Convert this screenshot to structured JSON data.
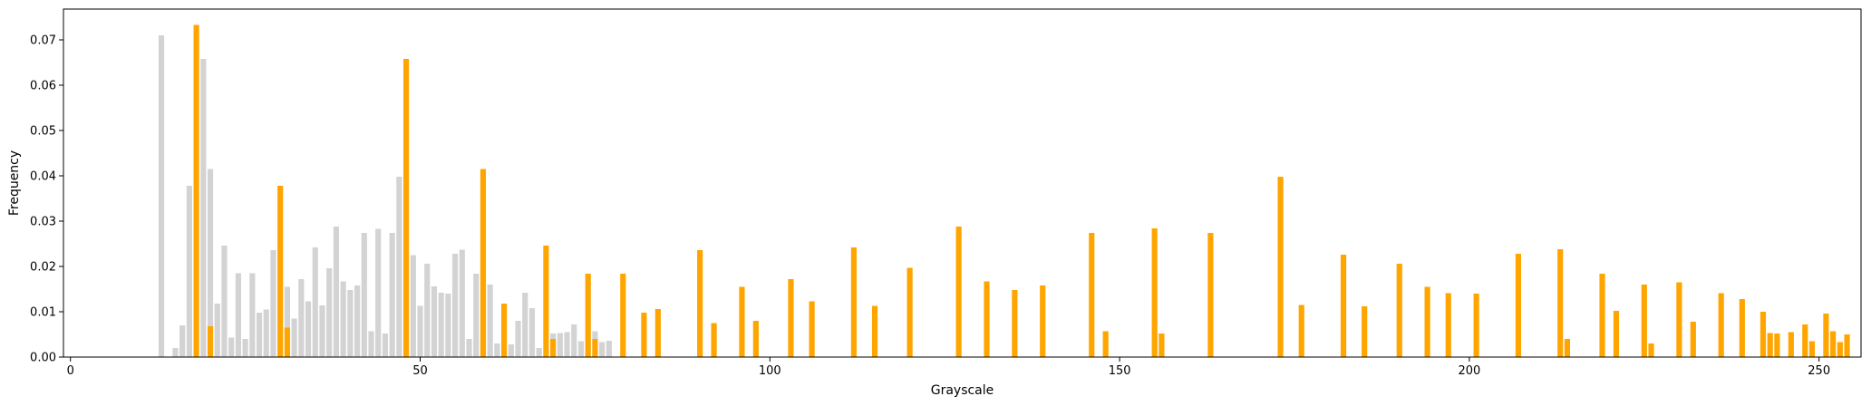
{
  "chart_data": {
    "type": "bar",
    "title": "",
    "xlabel": "Grayscale",
    "ylabel": "Frequency",
    "xlim": [
      -1,
      256
    ],
    "ylim": [
      0,
      0.0768
    ],
    "xticks": [
      0,
      50,
      100,
      150,
      200,
      250
    ],
    "yticks": [
      0.0,
      0.01,
      0.02,
      0.03,
      0.04,
      0.05,
      0.06,
      0.07
    ],
    "ytick_labels": [
      "0.00",
      "0.01",
      "0.02",
      "0.03",
      "0.04",
      "0.05",
      "0.06",
      "0.07"
    ],
    "grid": false,
    "colors": {
      "gray": "#d3d3d3",
      "orange": "#ffa500"
    },
    "series": [
      {
        "color": "#d3d3d3",
        "x": [
          13,
          15,
          16,
          17,
          19,
          20,
          21,
          22,
          23,
          24,
          25,
          26,
          27,
          28,
          29,
          31,
          32,
          33,
          34,
          35,
          36,
          37,
          38,
          39,
          40,
          41,
          42,
          43,
          44,
          45,
          46,
          47,
          49,
          50,
          51,
          52,
          53,
          54,
          55,
          56,
          57,
          58,
          60,
          61,
          63,
          64,
          65,
          66,
          67,
          69,
          70,
          71,
          72,
          73,
          75,
          76,
          77
        ],
        "values": [
          0.071,
          0.002,
          0.007,
          0.0378,
          0.0658,
          0.0415,
          0.0118,
          0.0246,
          0.0043,
          0.0185,
          0.004,
          0.0185,
          0.0098,
          0.0105,
          0.0236,
          0.0155,
          0.0085,
          0.0172,
          0.0123,
          0.0242,
          0.0114,
          0.0196,
          0.0288,
          0.0167,
          0.0148,
          0.0158,
          0.0274,
          0.0057,
          0.0283,
          0.0052,
          0.0274,
          0.0398,
          0.0225,
          0.0113,
          0.0206,
          0.0156,
          0.0142,
          0.014,
          0.0228,
          0.0237,
          0.004,
          0.0184,
          0.016,
          0.003,
          0.0028,
          0.008,
          0.0142,
          0.0108,
          0.002,
          0.0052,
          0.0053,
          0.0055,
          0.0072,
          0.0035,
          0.0057,
          0.0033,
          0.0036
        ]
      },
      {
        "color": "#ffa500",
        "x": [
          18,
          20,
          30,
          31,
          48,
          59,
          62,
          68,
          69,
          74,
          75,
          79,
          82,
          84,
          90,
          92,
          96,
          98,
          103,
          106,
          112,
          115,
          120,
          127,
          131,
          135,
          139,
          146,
          148,
          155,
          156,
          163,
          173,
          176,
          182,
          185,
          190,
          194,
          197,
          201,
          207,
          213,
          214,
          219,
          221,
          225,
          226,
          230,
          232,
          236,
          239,
          242,
          243,
          244,
          246,
          248,
          249,
          251,
          252,
          253,
          254
        ],
        "values": [
          0.0733,
          0.0068,
          0.0378,
          0.0065,
          0.0658,
          0.0415,
          0.0118,
          0.0246,
          0.004,
          0.0184,
          0.004,
          0.0184,
          0.0098,
          0.0106,
          0.0236,
          0.0075,
          0.0155,
          0.008,
          0.0172,
          0.0123,
          0.0242,
          0.0113,
          0.0197,
          0.0288,
          0.0167,
          0.0148,
          0.0158,
          0.0274,
          0.0057,
          0.0284,
          0.0052,
          0.0274,
          0.0398,
          0.0115,
          0.0226,
          0.0112,
          0.0206,
          0.0155,
          0.0141,
          0.014,
          0.0228,
          0.0238,
          0.004,
          0.0184,
          0.0102,
          0.016,
          0.003,
          0.0165,
          0.0078,
          0.0141,
          0.0128,
          0.01,
          0.0053,
          0.0052,
          0.0055,
          0.0072,
          0.0035,
          0.0096,
          0.0057,
          0.0033,
          0.005
        ]
      }
    ]
  }
}
